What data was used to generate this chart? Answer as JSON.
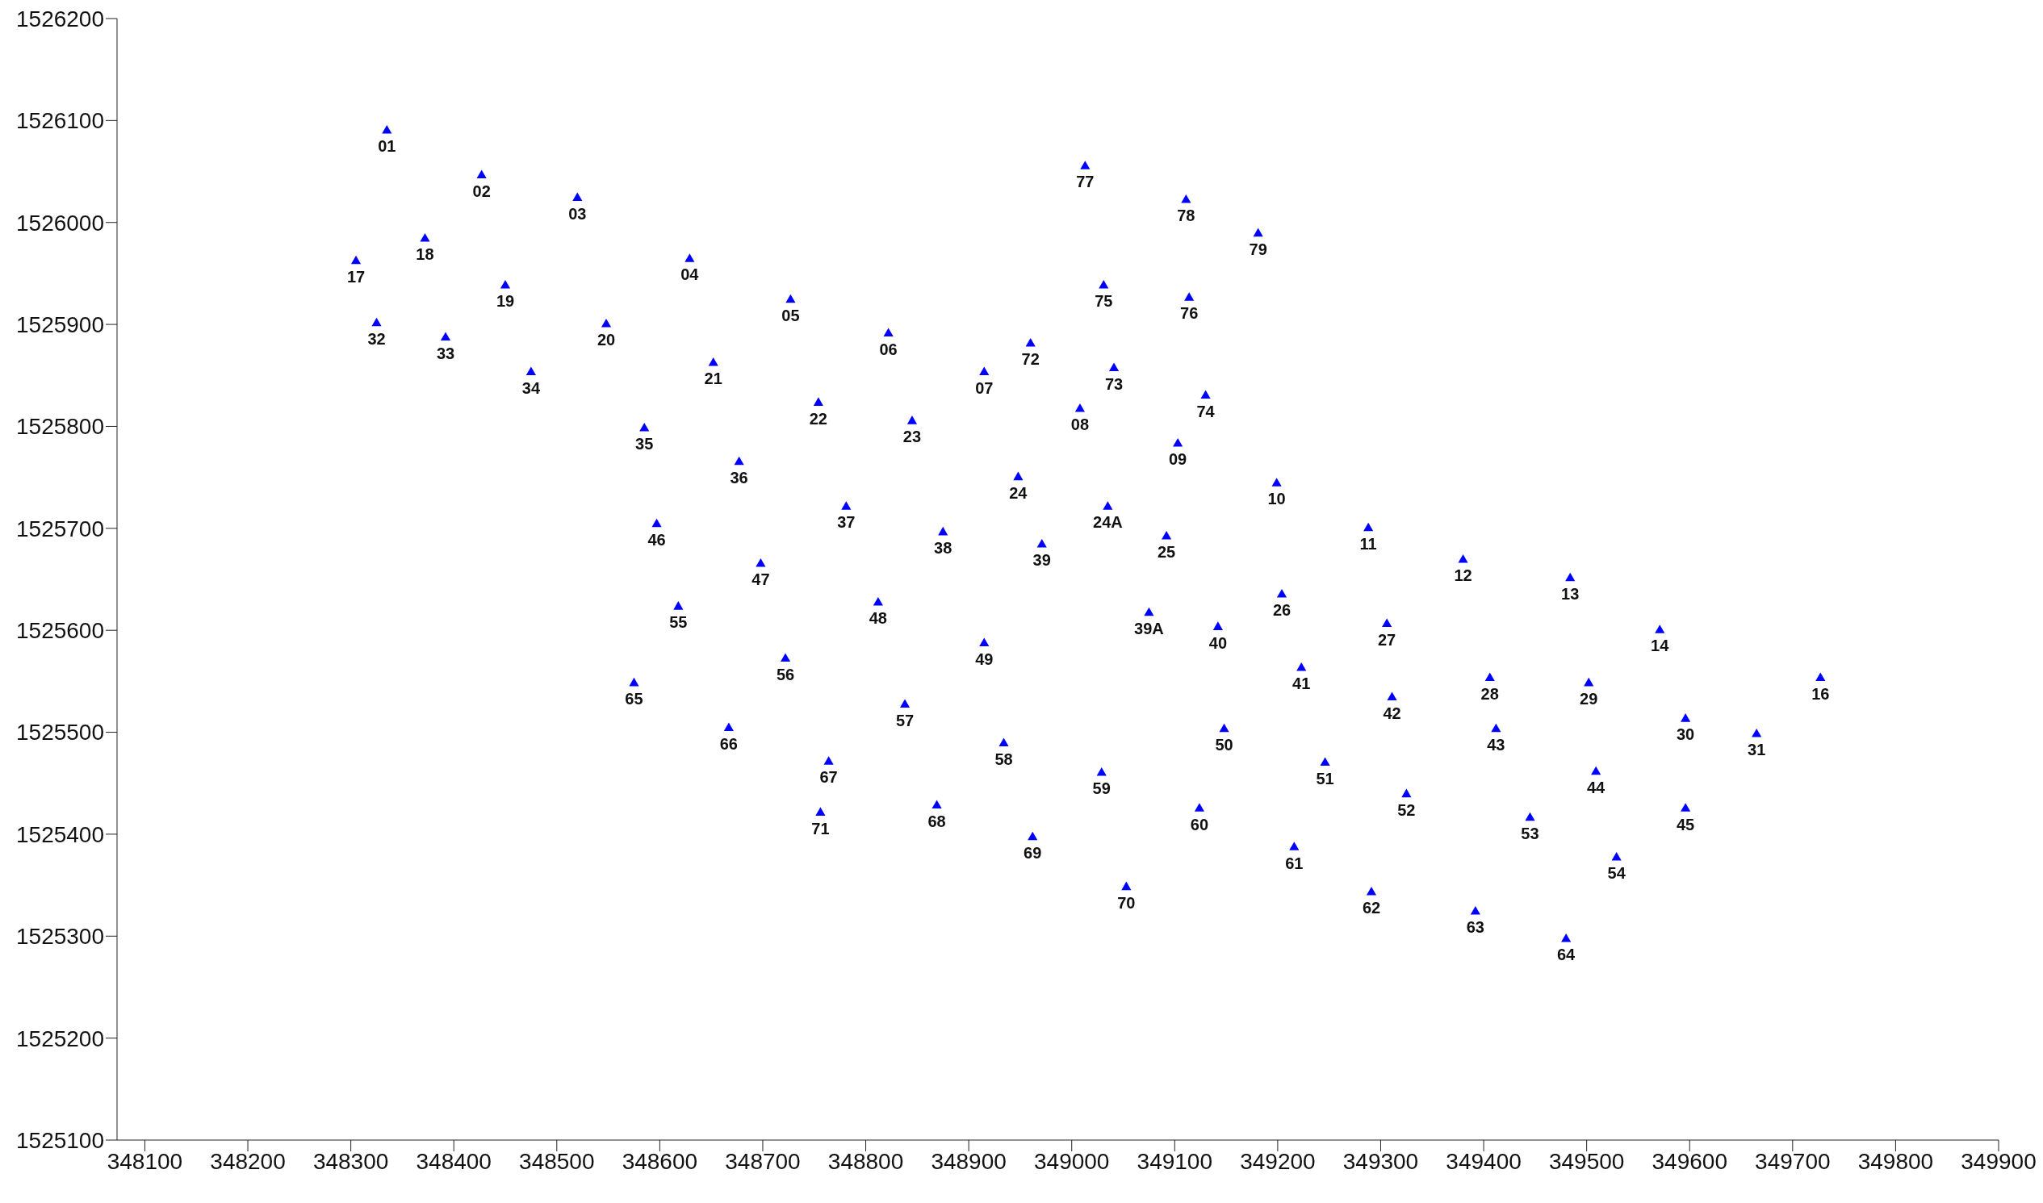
{
  "chart_data": {
    "type": "scatter",
    "marker": "triangle",
    "grid": false,
    "legend": false,
    "xlim": [
      348073,
      349900
    ],
    "xticks": [
      348100,
      348200,
      348300,
      348400,
      348500,
      348600,
      348700,
      348800,
      348900,
      349000,
      349100,
      349200,
      349300,
      349400,
      349500,
      349600,
      349700,
      349800,
      349900
    ],
    "ylim": [
      1525100,
      1526200
    ],
    "yticks": [
      1525100,
      1525200,
      1525300,
      1525400,
      1525500,
      1525600,
      1525700,
      1525800,
      1525900,
      1526000,
      1526100,
      1526200
    ],
    "series": [
      {
        "color": "#0000ff",
        "x": [
          348335,
          348427,
          348520,
          348629,
          348727,
          348822,
          348915,
          349008,
          349103,
          349199,
          349288,
          349380,
          349484,
          349571,
          349727,
          348305,
          348372,
          348450,
          348548,
          348652,
          348754,
          348845,
          348948,
          349035,
          349092,
          349204,
          349306,
          349406,
          349502,
          349596,
          349665,
          348325,
          348392,
          348475,
          348585,
          348677,
          348781,
          348875,
          348971,
          349075,
          349142,
          349223,
          349311,
          349412,
          349509,
          349596,
          348597,
          348698,
          348812,
          348915,
          349148,
          349246,
          349325,
          349445,
          349529,
          348618,
          348722,
          348838,
          348934,
          349029,
          349124,
          349216,
          349291,
          349392,
          349480,
          348575,
          348667,
          348764,
          348869,
          348962,
          349053,
          348756,
          348960,
          349041,
          349130,
          349031,
          349114,
          349013,
          349111,
          349181
        ],
        "values": [
          1526090,
          1526046,
          1526024,
          1525964,
          1525924,
          1525891,
          1525853,
          1525817,
          1525783,
          1525744,
          1525700,
          1525669,
          1525651,
          1525600,
          1525553,
          1525962,
          1525984,
          1525938,
          1525900,
          1525862,
          1525823,
          1525805,
          1525750,
          1525721,
          1525692,
          1525635,
          1525606,
          1525553,
          1525548,
          1525513,
          1525498,
          1525901,
          1525887,
          1525853,
          1525798,
          1525765,
          1525721,
          1525696,
          1525684,
          1525617,
          1525603,
          1525563,
          1525534,
          1525503,
          1525461,
          1525425,
          1525704,
          1525665,
          1525627,
          1525587,
          1525503,
          1525470,
          1525439,
          1525416,
          1525377,
          1525623,
          1525572,
          1525527,
          1525489,
          1525460,
          1525425,
          1525387,
          1525343,
          1525324,
          1525297,
          1525548,
          1525504,
          1525471,
          1525428,
          1525397,
          1525348,
          1525421,
          1525881,
          1525857,
          1525830,
          1525938,
          1525926,
          1526055,
          1526022,
          1525989
        ]
      }
    ],
    "annotations": [
      {
        "text": "01",
        "x": 348335,
        "y": 1526090
      },
      {
        "text": "02",
        "x": 348427,
        "y": 1526046
      },
      {
        "text": "03",
        "x": 348520,
        "y": 1526024
      },
      {
        "text": "04",
        "x": 348629,
        "y": 1525964
      },
      {
        "text": "05",
        "x": 348727,
        "y": 1525924
      },
      {
        "text": "06",
        "x": 348822,
        "y": 1525891
      },
      {
        "text": "07",
        "x": 348915,
        "y": 1525853
      },
      {
        "text": "08",
        "x": 349008,
        "y": 1525817
      },
      {
        "text": "09",
        "x": 349103,
        "y": 1525783
      },
      {
        "text": "10",
        "x": 349199,
        "y": 1525744
      },
      {
        "text": "11",
        "x": 349288,
        "y": 1525700
      },
      {
        "text": "12",
        "x": 349380,
        "y": 1525669
      },
      {
        "text": "13",
        "x": 349484,
        "y": 1525651
      },
      {
        "text": "14",
        "x": 349571,
        "y": 1525600
      },
      {
        "text": "16",
        "x": 349727,
        "y": 1525553
      },
      {
        "text": "17",
        "x": 348305,
        "y": 1525962
      },
      {
        "text": "18",
        "x": 348372,
        "y": 1525984
      },
      {
        "text": "19",
        "x": 348450,
        "y": 1525938
      },
      {
        "text": "20",
        "x": 348548,
        "y": 1525900
      },
      {
        "text": "21",
        "x": 348652,
        "y": 1525862
      },
      {
        "text": "22",
        "x": 348754,
        "y": 1525823
      },
      {
        "text": "23",
        "x": 348845,
        "y": 1525805
      },
      {
        "text": "24",
        "x": 348948,
        "y": 1525750
      },
      {
        "text": "24A",
        "x": 349035,
        "y": 1525721
      },
      {
        "text": "25",
        "x": 349092,
        "y": 1525692
      },
      {
        "text": "26",
        "x": 349204,
        "y": 1525635
      },
      {
        "text": "27",
        "x": 349306,
        "y": 1525606
      },
      {
        "text": "28",
        "x": 349406,
        "y": 1525553
      },
      {
        "text": "29",
        "x": 349502,
        "y": 1525548
      },
      {
        "text": "30",
        "x": 349596,
        "y": 1525513
      },
      {
        "text": "31",
        "x": 349665,
        "y": 1525498
      },
      {
        "text": "32",
        "x": 348325,
        "y": 1525901
      },
      {
        "text": "33",
        "x": 348392,
        "y": 1525887
      },
      {
        "text": "34",
        "x": 348475,
        "y": 1525853
      },
      {
        "text": "35",
        "x": 348585,
        "y": 1525798
      },
      {
        "text": "36",
        "x": 348677,
        "y": 1525765
      },
      {
        "text": "37",
        "x": 348781,
        "y": 1525721
      },
      {
        "text": "38",
        "x": 348875,
        "y": 1525696
      },
      {
        "text": "39",
        "x": 348971,
        "y": 1525684
      },
      {
        "text": "39A",
        "x": 349075,
        "y": 1525617
      },
      {
        "text": "40",
        "x": 349142,
        "y": 1525603
      },
      {
        "text": "41",
        "x": 349223,
        "y": 1525563
      },
      {
        "text": "42",
        "x": 349311,
        "y": 1525534
      },
      {
        "text": "43",
        "x": 349412,
        "y": 1525503
      },
      {
        "text": "44",
        "x": 349509,
        "y": 1525461
      },
      {
        "text": "45",
        "x": 349596,
        "y": 1525425
      },
      {
        "text": "46",
        "x": 348597,
        "y": 1525704
      },
      {
        "text": "47",
        "x": 348698,
        "y": 1525665
      },
      {
        "text": "48",
        "x": 348812,
        "y": 1525627
      },
      {
        "text": "49",
        "x": 348915,
        "y": 1525587
      },
      {
        "text": "50",
        "x": 349148,
        "y": 1525503
      },
      {
        "text": "51",
        "x": 349246,
        "y": 1525470
      },
      {
        "text": "52",
        "x": 349325,
        "y": 1525439
      },
      {
        "text": "53",
        "x": 349445,
        "y": 1525416
      },
      {
        "text": "54",
        "x": 349529,
        "y": 1525377
      },
      {
        "text": "55",
        "x": 348618,
        "y": 1525623
      },
      {
        "text": "56",
        "x": 348722,
        "y": 1525572
      },
      {
        "text": "57",
        "x": 348838,
        "y": 1525527
      },
      {
        "text": "58",
        "x": 348934,
        "y": 1525489
      },
      {
        "text": "59",
        "x": 349029,
        "y": 1525460
      },
      {
        "text": "60",
        "x": 349124,
        "y": 1525425
      },
      {
        "text": "61",
        "x": 349216,
        "y": 1525387
      },
      {
        "text": "62",
        "x": 349291,
        "y": 1525343
      },
      {
        "text": "63",
        "x": 349392,
        "y": 1525324
      },
      {
        "text": "64",
        "x": 349480,
        "y": 1525297
      },
      {
        "text": "65",
        "x": 348575,
        "y": 1525548
      },
      {
        "text": "66",
        "x": 348667,
        "y": 1525504
      },
      {
        "text": "67",
        "x": 348764,
        "y": 1525471
      },
      {
        "text": "68",
        "x": 348869,
        "y": 1525428
      },
      {
        "text": "69",
        "x": 348962,
        "y": 1525397
      },
      {
        "text": "70",
        "x": 349053,
        "y": 1525348
      },
      {
        "text": "71",
        "x": 348756,
        "y": 1525421
      },
      {
        "text": "72",
        "x": 348960,
        "y": 1525881
      },
      {
        "text": "73",
        "x": 349041,
        "y": 1525857
      },
      {
        "text": "74",
        "x": 349130,
        "y": 1525830
      },
      {
        "text": "75",
        "x": 349031,
        "y": 1525938
      },
      {
        "text": "76",
        "x": 349114,
        "y": 1525926
      },
      {
        "text": "77",
        "x": 349013,
        "y": 1526055
      },
      {
        "text": "78",
        "x": 349111,
        "y": 1526022
      },
      {
        "text": "79",
        "x": 349181,
        "y": 1525989
      }
    ]
  }
}
